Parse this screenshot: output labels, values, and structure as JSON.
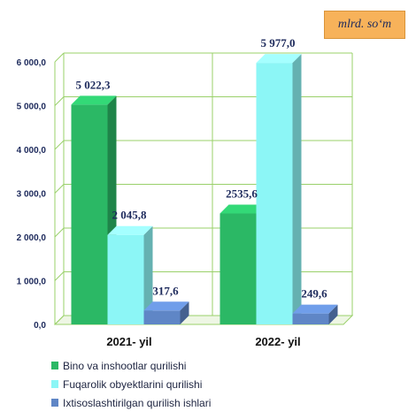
{
  "unit_label": "mlrd. so‘m",
  "chart_data": {
    "type": "bar",
    "categories": [
      "2021-  yil",
      "2022- yil"
    ],
    "series": [
      {
        "name": "Bino va inshootlar qurilishi",
        "values": [
          5022.3,
          2535.6
        ],
        "labels": [
          "5 022,3",
          "2535,6"
        ],
        "color": "#2bb865"
      },
      {
        "name": "Fuqarolik obyektlarini qurilishi",
        "values": [
          2045.8,
          5977.0
        ],
        "labels": [
          "2 045,8",
          "5 977,0"
        ],
        "color": "#8cf6f6"
      },
      {
        "name": "Ixtisoslashtirilgan qurilish ishlari",
        "values": [
          317.6,
          249.6
        ],
        "labels": [
          "317,6",
          "249,6"
        ],
        "color": "#5f86c6"
      }
    ],
    "yticks": [
      {
        "value": 0,
        "label": "0,0"
      },
      {
        "value": 1000,
        "label": "1 000,0"
      },
      {
        "value": 2000,
        "label": "2 000,0"
      },
      {
        "value": 3000,
        "label": "3 000,0"
      },
      {
        "value": 4000,
        "label": "4 000,0"
      },
      {
        "value": 5000,
        "label": "5 000,0"
      },
      {
        "value": 6000,
        "label": "6 000,0"
      }
    ],
    "ylim": [
      0,
      6000
    ],
    "grid": true,
    "legend_position": "bottom"
  }
}
